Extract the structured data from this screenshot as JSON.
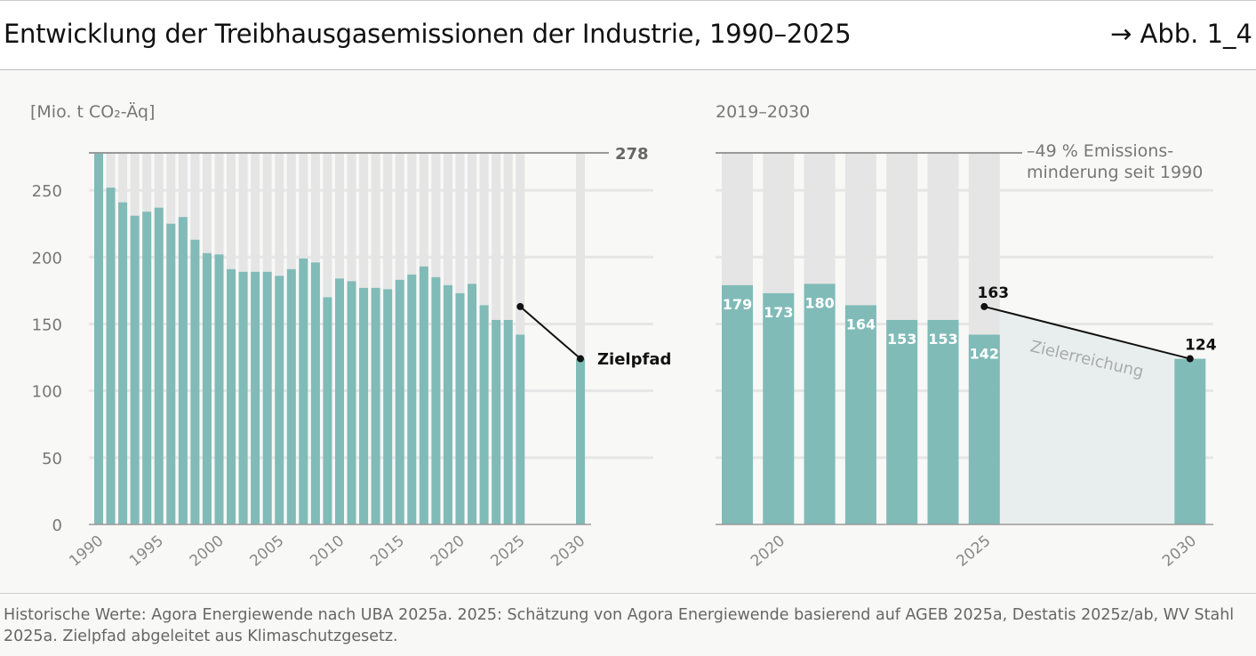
{
  "header": {
    "title": "Entwicklung der Treibhausgasemissionen der Industrie, 1990–2025",
    "figure_ref": "→ Abb. 1_4"
  },
  "footer": {
    "source": "Historische Werte: Agora Energiewende nach UBA 2025a. 2025: Schätzung von Agora Energiewende basierend auf AGEB 2025a, Destatis 2025z/ab, WV Stahl 2025a. Zielpfad abgeleitet aus Klimaschutzgesetz."
  },
  "colors": {
    "bar": "#80bbb8",
    "background_bar": "#e5e5e5",
    "target_area": "#e8eeee",
    "line": "#111111"
  },
  "chart_data": [
    {
      "type": "bar",
      "ylabel": "[Mio. t CO₂-Äq]",
      "ylim": [
        0,
        278
      ],
      "yticks": [
        0,
        50,
        100,
        150,
        200,
        250
      ],
      "reference_value": 278,
      "reference_label": "278",
      "xticks": [
        "1990",
        "1995",
        "2000",
        "2005",
        "2010",
        "2015",
        "2020",
        "2025",
        "2030"
      ],
      "grid": true,
      "x": [
        1990,
        1991,
        1992,
        1993,
        1994,
        1995,
        1996,
        1997,
        1998,
        1999,
        2000,
        2001,
        2002,
        2003,
        2004,
        2005,
        2006,
        2007,
        2008,
        2009,
        2010,
        2011,
        2012,
        2013,
        2014,
        2015,
        2016,
        2017,
        2018,
        2019,
        2020,
        2021,
        2022,
        2023,
        2024,
        2025,
        2030
      ],
      "values": [
        278,
        252,
        241,
        231,
        234,
        237,
        225,
        230,
        213,
        203,
        202,
        191,
        189,
        189,
        189,
        186,
        191,
        199,
        196,
        170,
        184,
        182,
        177,
        177,
        176,
        183,
        187,
        193,
        185,
        179,
        173,
        180,
        164,
        153,
        153,
        142,
        124
      ],
      "target_path": {
        "label": "Zielpfad",
        "points": [
          [
            2025,
            163
          ],
          [
            2030,
            124
          ]
        ]
      }
    },
    {
      "type": "bar",
      "title": "2019–2030",
      "ylim": [
        0,
        278
      ],
      "xticks": [
        "2020",
        "2025",
        "2030"
      ],
      "x": [
        2019,
        2020,
        2021,
        2022,
        2023,
        2024,
        2025,
        2030
      ],
      "values": [
        179,
        173,
        180,
        164,
        153,
        153,
        142,
        124
      ],
      "data_labels": [
        "179",
        "173",
        "180",
        "164",
        "153",
        "153",
        "142",
        "124"
      ],
      "annotation": "–49 % Emissions-\nminderung seit 1990",
      "target_path": {
        "label": "Zielerreichung",
        "points": [
          [
            2025,
            163
          ],
          [
            2030,
            124
          ]
        ],
        "point_labels": [
          "163",
          "124"
        ]
      }
    }
  ]
}
